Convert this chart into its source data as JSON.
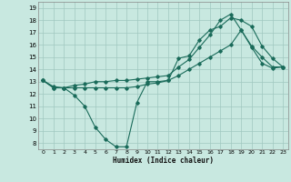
{
  "xlabel": "Humidex (Indice chaleur)",
  "bg_color": "#c8e8e0",
  "grid_color": "#a0c8c0",
  "line_color": "#1a6b5a",
  "xlim": [
    -0.5,
    23.5
  ],
  "ylim": [
    7.5,
    19.5
  ],
  "xticks": [
    0,
    1,
    2,
    3,
    4,
    5,
    6,
    7,
    8,
    9,
    10,
    11,
    12,
    13,
    14,
    15,
    16,
    17,
    18,
    19,
    20,
    21,
    22,
    23
  ],
  "yticks": [
    8,
    9,
    10,
    11,
    12,
    13,
    14,
    15,
    16,
    17,
    18,
    19
  ],
  "line1_x": [
    0,
    1,
    2,
    3,
    4,
    5,
    6,
    7,
    8,
    9,
    10,
    11,
    12,
    13,
    14,
    15,
    16,
    17,
    18,
    19,
    20,
    21,
    22,
    23
  ],
  "line1_y": [
    13.1,
    12.6,
    12.5,
    11.9,
    11.0,
    9.3,
    8.3,
    7.7,
    7.7,
    11.3,
    13.0,
    13.0,
    13.1,
    14.9,
    15.1,
    16.4,
    17.2,
    17.5,
    18.2,
    18.0,
    17.5,
    15.9,
    14.9,
    14.2
  ],
  "line2_x": [
    0,
    1,
    2,
    3,
    4,
    5,
    6,
    7,
    8,
    9,
    10,
    11,
    12,
    13,
    14,
    15,
    16,
    17,
    18,
    19,
    20,
    21,
    22,
    23
  ],
  "line2_y": [
    13.1,
    12.5,
    12.5,
    12.5,
    12.5,
    12.5,
    12.5,
    12.5,
    12.5,
    12.6,
    12.8,
    12.9,
    13.1,
    13.5,
    14.0,
    14.5,
    15.0,
    15.5,
    16.0,
    17.2,
    15.8,
    14.5,
    14.1,
    14.2
  ],
  "line3_x": [
    0,
    1,
    2,
    3,
    4,
    5,
    6,
    7,
    8,
    9,
    10,
    11,
    12,
    13,
    14,
    15,
    16,
    17,
    18,
    19,
    20,
    21,
    22,
    23
  ],
  "line3_y": [
    13.1,
    12.5,
    12.5,
    12.7,
    12.8,
    13.0,
    13.0,
    13.1,
    13.1,
    13.2,
    13.3,
    13.4,
    13.5,
    14.2,
    14.8,
    15.8,
    16.8,
    18.0,
    18.5,
    17.2,
    15.9,
    15.0,
    14.2,
    14.2
  ]
}
